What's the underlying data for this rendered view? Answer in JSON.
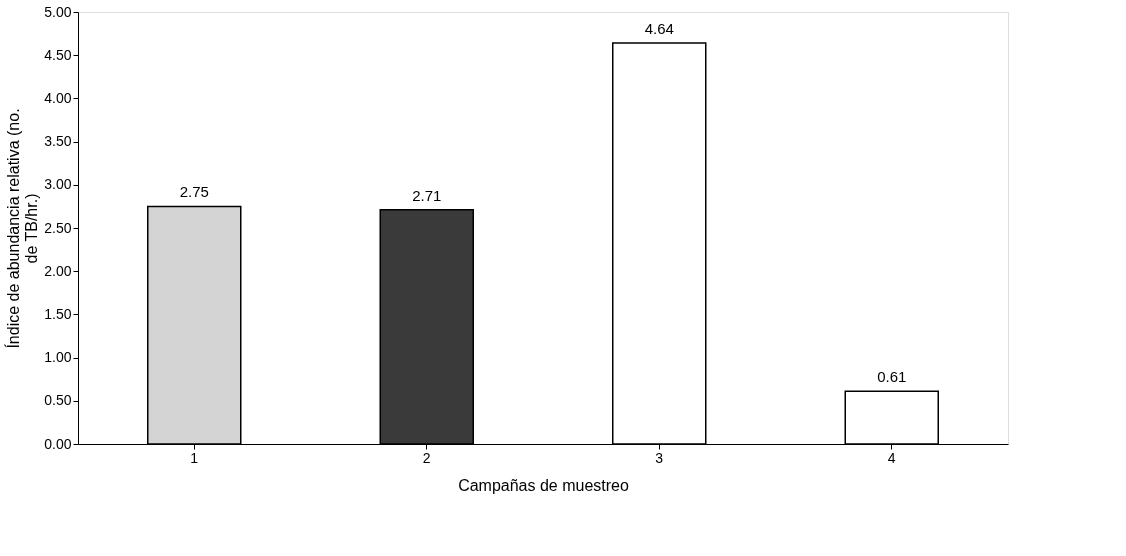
{
  "chart_data": {
    "type": "bar",
    "xlabel": "Campañas de muestreo",
    "ylabel": "Índice de abundancia relativa (no. de TB/hr.)",
    "categories": [
      "1",
      "2",
      "3",
      "4"
    ],
    "values": [
      2.75,
      2.71,
      4.64,
      0.61
    ],
    "colors": [
      "#d4d4d4",
      "#3a3a3a",
      "#ffffff",
      "#ffffff"
    ],
    "ylim": [
      0,
      5
    ],
    "yticks": [
      {
        "value": 0,
        "label": "0.00"
      },
      {
        "value": 0.5,
        "label": "0.50"
      },
      {
        "value": 1,
        "label": "1.00"
      },
      {
        "value": 1.5,
        "label": "1.50"
      },
      {
        "value": 2,
        "label": "2.00"
      },
      {
        "value": 2.5,
        "label": "2.50"
      },
      {
        "value": 3,
        "label": "3.00"
      },
      {
        "value": 3.5,
        "label": "3.50"
      },
      {
        "value": 4,
        "label": "4.00"
      },
      {
        "value": 4.5,
        "label": "4.50"
      },
      {
        "value": 5,
        "label": "5.00"
      }
    ],
    "data_labels": true,
    "grid": false,
    "legend": false
  }
}
